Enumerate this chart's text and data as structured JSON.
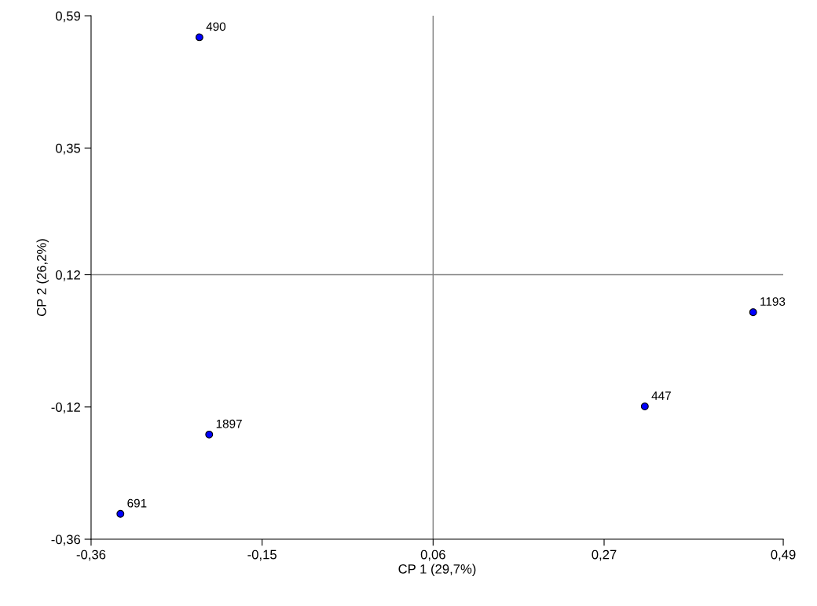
{
  "chart_data": {
    "type": "scatter",
    "xlabel": "CP 1 (29,7%)",
    "ylabel": "CP 2 (26,2%)",
    "x": [
      -0.227,
      -0.215,
      -0.324,
      0.453,
      0.32
    ],
    "series": [
      {
        "color": "#0000ff",
        "values": [
          0.551,
          -0.17,
          -0.314,
          0.052,
          -0.119
        ]
      }
    ],
    "annotations": [
      {
        "text": "490",
        "x": -0.227,
        "y": 0.551
      },
      {
        "text": "1897",
        "x": -0.215,
        "y": -0.17
      },
      {
        "text": "691",
        "x": -0.324,
        "y": -0.314
      },
      {
        "text": "1193",
        "x": 0.453,
        "y": 0.052
      },
      {
        "text": "447",
        "x": 0.32,
        "y": -0.119
      }
    ],
    "xlim": [
      -0.36,
      0.49
    ],
    "ylim": [
      -0.36,
      0.59
    ],
    "xticks": [
      {
        "value": -0.36,
        "label": "-0,36"
      },
      {
        "value": -0.15,
        "label": "-0,15"
      },
      {
        "value": 0.06,
        "label": "0,06"
      },
      {
        "value": 0.27,
        "label": "0,27"
      },
      {
        "value": 0.49,
        "label": "0,49"
      }
    ],
    "yticks": [
      {
        "value": -0.36,
        "label": "-0,36"
      },
      {
        "value": -0.12,
        "label": "-0,12"
      },
      {
        "value": 0.12,
        "label": "0,12"
      },
      {
        "value": 0.35,
        "label": "0,35"
      },
      {
        "value": 0.59,
        "label": "0,59"
      }
    ],
    "ref_lines": [
      {
        "axis": "x",
        "value": 0.06,
        "color": "#808080"
      },
      {
        "axis": "y",
        "value": 0.12,
        "color": "#808080"
      }
    ],
    "marker": "circle",
    "grid": false
  }
}
